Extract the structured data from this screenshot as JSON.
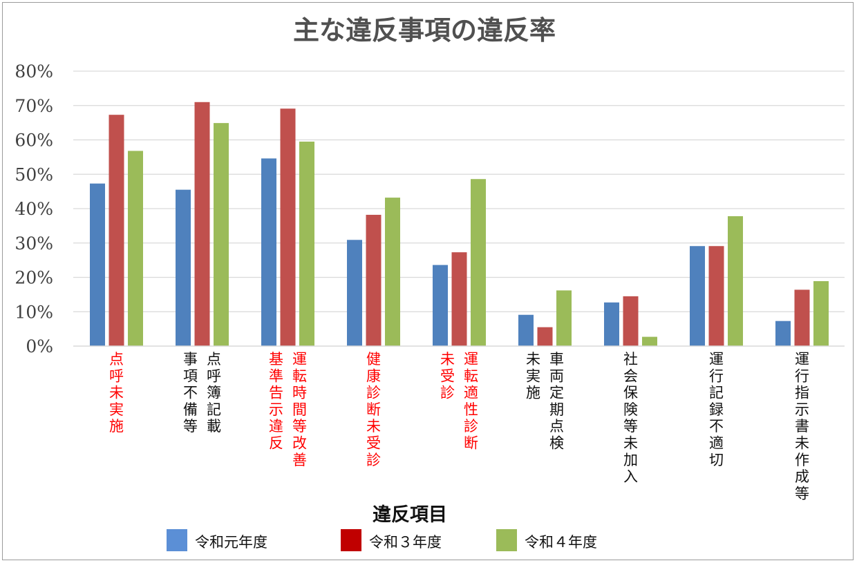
{
  "chart_data": {
    "type": "bar",
    "title": "主な違反事項の違反率",
    "xlabel": "違反項目",
    "ylabel": "",
    "ylim": [
      0,
      80
    ],
    "y_ticks": [
      "0%",
      "10%",
      "20%",
      "30%",
      "40%",
      "50%",
      "60%",
      "70%",
      "80%"
    ],
    "grid": true,
    "legend_position": "bottom",
    "categories": [
      {
        "label": "点呼未実施",
        "columns": [
          "点呼未実施"
        ],
        "color": "#ff0000"
      },
      {
        "label": "点呼簿記載事項不備等",
        "columns": [
          "点呼簿記載",
          "事項不備等"
        ],
        "color": "#111111"
      },
      {
        "label": "運転時間等改善基準告示違反",
        "columns": [
          "運転時間等改善",
          "基準告示違反"
        ],
        "color": "#ff0000"
      },
      {
        "label": "健康診断未受診",
        "columns": [
          "健康診断未受診"
        ],
        "color": "#ff0000"
      },
      {
        "label": "運転適性診断未受診",
        "columns": [
          "運転適性診断",
          "未受診"
        ],
        "color": "#ff0000"
      },
      {
        "label": "車両定期点検未実施",
        "columns": [
          "車両定期点検",
          "未実施"
        ],
        "color": "#111111"
      },
      {
        "label": "社会保険等未加入",
        "columns": [
          "社会保険等未加入"
        ],
        "color": "#111111"
      },
      {
        "label": "運行記録不適切",
        "columns": [
          "運行記録不適切"
        ],
        "color": "#111111"
      },
      {
        "label": "運行指示書未作成等",
        "columns": [
          "運行指示書未作成等"
        ],
        "color": "#111111"
      }
    ],
    "series": [
      {
        "name": "令和元年度",
        "color": "#4f81bd",
        "legend_color": "#5b8fd6",
        "values": [
          47.3,
          45.5,
          54.6,
          30.9,
          23.6,
          9.1,
          12.7,
          29.1,
          7.3
        ]
      },
      {
        "name": "令和３年度",
        "color": "#c0504d",
        "legend_color": "#c00000",
        "values": [
          67.3,
          71.0,
          69.1,
          38.2,
          27.3,
          5.5,
          14.5,
          29.1,
          16.4
        ]
      },
      {
        "name": "令和４年度",
        "color": "#9bbb59",
        "legend_color": "#9bbb59",
        "values": [
          56.8,
          64.9,
          59.5,
          43.2,
          48.6,
          16.2,
          2.7,
          37.8,
          18.9
        ]
      }
    ]
  }
}
